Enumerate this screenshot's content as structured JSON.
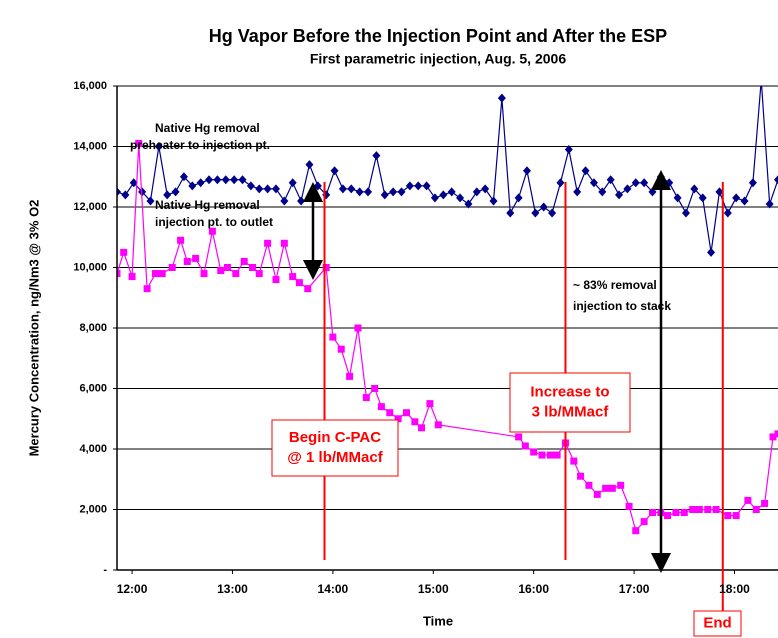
{
  "chart_data": {
    "type": "line",
    "title": "Hg Vapor Before the Injection Point and After the ESP",
    "subtitle": "First parametric injection, Aug. 5, 2006",
    "x_label": "Time",
    "y_label": "Mercury Concentration, ng/Nm3 @ 3% O2",
    "xlim": [
      711,
      1106
    ],
    "xticks": [
      {
        "value": 720,
        "label": "12:00"
      },
      {
        "value": 780,
        "label": "13:00"
      },
      {
        "value": 840,
        "label": "14:00"
      },
      {
        "value": 900,
        "label": "15:00"
      },
      {
        "value": 960,
        "label": "16:00"
      },
      {
        "value": 1020,
        "label": "17:00"
      },
      {
        "value": 1080,
        "label": "18:00"
      }
    ],
    "ylim": [
      0,
      16000
    ],
    "yticks": [
      {
        "value": 0,
        "label": "-"
      },
      {
        "value": 2000,
        "label": "2,000"
      },
      {
        "value": 4000,
        "label": "4,000"
      },
      {
        "value": 6000,
        "label": "6,000"
      },
      {
        "value": 8000,
        "label": "8,000"
      },
      {
        "value": 10000,
        "label": "10,000"
      },
      {
        "value": 12000,
        "label": "12,000"
      },
      {
        "value": 14000,
        "label": "14,000"
      },
      {
        "value": 16000,
        "label": "16,000"
      }
    ],
    "grid": true,
    "series": [
      {
        "color": "#00008b",
        "marker": "diamond",
        "x": [
          711,
          716,
          721,
          726,
          731,
          736,
          741,
          746,
          751,
          756,
          761,
          766,
          771,
          776,
          781,
          786,
          791,
          796,
          801,
          806,
          811,
          816,
          821,
          826,
          831,
          836,
          841,
          846,
          851,
          856,
          861,
          866,
          871,
          876,
          881,
          886,
          891,
          896,
          901,
          906,
          911,
          916,
          921,
          926,
          931,
          936,
          941,
          946,
          951,
          956,
          961,
          966,
          971,
          976,
          981,
          986,
          991,
          996,
          1001,
          1006,
          1011,
          1016,
          1021,
          1026,
          1031,
          1036,
          1041,
          1046,
          1051,
          1056,
          1061,
          1066,
          1071,
          1076,
          1081,
          1086,
          1091,
          1096,
          1101,
          1106
        ],
        "values": [
          12500,
          12400,
          12800,
          12500,
          12200,
          14000,
          12400,
          12500,
          13000,
          12700,
          12800,
          12900,
          12900,
          12900,
          12900,
          12900,
          12700,
          12600,
          12600,
          12600,
          12200,
          12800,
          12200,
          13400,
          12700,
          12400,
          13200,
          12600,
          12600,
          12500,
          12500,
          13700,
          12400,
          12500,
          12500,
          12700,
          12700,
          12700,
          12300,
          12400,
          12500,
          12300,
          12100,
          12500,
          12600,
          12200,
          15600,
          11800,
          12300,
          13200,
          11800,
          12000,
          11800,
          12800,
          13900,
          12500,
          13200,
          12800,
          12500,
          12900,
          12400,
          12600,
          12800,
          12800,
          12500,
          13000,
          12800,
          12300,
          11800,
          12600,
          12300,
          10500,
          12500,
          11800,
          12300,
          12200,
          12800,
          16200,
          12100,
          12900
        ]
      },
      {
        "color": "#ff00ff",
        "marker": "square",
        "x": [
          711,
          715,
          720,
          724,
          729,
          734,
          738,
          744,
          749,
          753,
          758,
          763,
          768,
          773,
          777,
          782,
          787,
          792,
          796,
          801,
          806,
          811,
          816,
          820,
          825,
          836,
          840,
          845,
          850,
          855,
          860,
          865,
          869,
          874,
          879,
          884,
          889,
          893,
          898,
          903,
          951,
          955,
          960,
          965,
          970,
          974,
          979,
          984,
          988,
          993,
          998,
          1003,
          1007,
          1012,
          1017,
          1021,
          1026,
          1031,
          1036,
          1040,
          1045,
          1050,
          1055,
          1059,
          1064,
          1069,
          1076,
          1081,
          1088,
          1093,
          1098,
          1103,
          1106
        ],
        "values": [
          9800,
          10500,
          9700,
          14100,
          9300,
          9800,
          9800,
          10000,
          10900,
          10200,
          10300,
          9800,
          11200,
          9900,
          10000,
          9800,
          10200,
          10000,
          9800,
          10800,
          9600,
          10800,
          9700,
          9500,
          9300,
          10000,
          7700,
          7300,
          6400,
          8000,
          5700,
          6000,
          5400,
          5200,
          5000,
          5200,
          4900,
          4700,
          5500,
          4800,
          4400,
          4100,
          3900,
          3800,
          3800,
          3800,
          4200,
          3600,
          3100,
          2800,
          2500,
          2700,
          2700,
          2800,
          2100,
          1300,
          1600,
          1900,
          1900,
          1800,
          1900,
          1900,
          2000,
          2000,
          2000,
          2000,
          1800,
          1800,
          2300,
          2000,
          2200,
          4400,
          4500
        ]
      }
    ],
    "events": [
      {
        "x": 835,
        "label": [
          "Begin C-PAC",
          "@ 1 lb/MMacf"
        ]
      },
      {
        "x": 979,
        "label": [
          "Increase to",
          "3 lb/MMacf"
        ]
      },
      {
        "x": 1073,
        "label": [
          "End"
        ]
      }
    ],
    "annotations": [
      "Native Hg removal",
      "preheater to injection pt.",
      "Native Hg removal",
      "injection pt. to outlet",
      "~ 83% removal",
      "injection to stack"
    ]
  }
}
